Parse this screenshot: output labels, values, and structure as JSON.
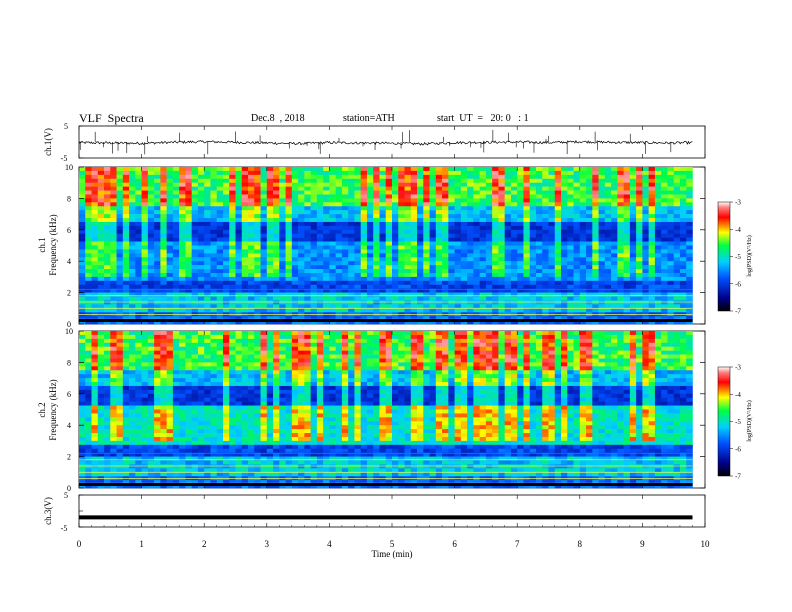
{
  "header": {
    "title": "VLF  Spectra",
    "date": "Dec.8  , 2018",
    "station": "station=ATH",
    "start_ut": "start  UT  =   20: 0   : 1"
  },
  "chart_data": [
    {
      "type": "line",
      "panel": "ch1-waveform",
      "ylabel": "ch.1(V)",
      "ytick_labels": [
        "5",
        "-5"
      ],
      "ylim": [
        -5,
        5
      ],
      "xlim": [
        0,
        10
      ],
      "x_note": "time in minutes, data spans 0 to ~9.8",
      "description_values": "noisy waveform hovering around 0 V with spikes",
      "x": [
        0,
        0.5,
        1,
        1.5,
        2,
        2.5,
        3,
        3.5,
        4,
        4.5,
        5,
        5.5,
        6,
        6.5,
        7,
        7.5,
        8,
        8.5,
        9,
        9.5,
        9.8
      ],
      "y": [
        -0.2,
        -0.3,
        -0.4,
        -0.1,
        0.1,
        -0.1,
        -0.3,
        -0.5,
        -0.2,
        -0.3,
        -0.4,
        -0.6,
        -0.2,
        -0.1,
        0.0,
        -0.2,
        0.1,
        -0.1,
        -0.2,
        -0.3,
        -0.2
      ]
    },
    {
      "type": "heatmap",
      "panel": "ch1-spectrogram",
      "ylabel": "ch.1\nFrequency (kHz)",
      "yticks": [
        0,
        2,
        4,
        6,
        8,
        10
      ],
      "ylim": [
        0,
        10
      ],
      "xlim": [
        0,
        10
      ],
      "colorbar": {
        "label": "log(PSD)(V²/Hz)",
        "ticks": [
          -3,
          -4,
          -5,
          -6,
          -7
        ],
        "range": [
          -7,
          -3
        ]
      }
    },
    {
      "type": "heatmap",
      "panel": "ch2-spectrogram",
      "ylabel": "ch.2\nFrequency (kHz)",
      "yticks": [
        0,
        2,
        4,
        6,
        8,
        10
      ],
      "ylim": [
        0,
        10
      ],
      "xlim": [
        0,
        10
      ],
      "colorbar": {
        "label": "log(PSD)(V²/Hz)",
        "ticks": [
          -3,
          -4,
          -5,
          -6,
          -7
        ],
        "range": [
          -7,
          -3
        ]
      }
    },
    {
      "type": "line",
      "panel": "ch3-waveform",
      "ylabel": "ch.3(V)",
      "ytick_labels": [
        "5",
        "-5"
      ],
      "ylim": [
        -5,
        5
      ],
      "xlim": [
        0,
        10
      ],
      "x": [
        0,
        9.8
      ],
      "y": [
        -2.0,
        -2.0
      ]
    }
  ],
  "xaxis": {
    "label": "Time  (min)",
    "ticks": [
      "0",
      "1",
      "2",
      "3",
      "4",
      "5",
      "6",
      "7",
      "8",
      "9",
      "10"
    ]
  },
  "labels": {
    "ch1_waveform": "ch.1(V)",
    "ch1_spec_a": "ch.1",
    "ch1_spec_b": "Frequency (kHz)",
    "ch2_spec_a": "ch.2",
    "ch2_spec_b": "Frequency (kHz)",
    "ch3_waveform": "ch.3(V)",
    "colorbar": "log(PSD)(V²/Hz)",
    "wave_top": "5",
    "wave_bottom": "-5"
  },
  "colors": {
    "low": "#000080",
    "mid": "#00c8ff",
    "high": "#80ff40",
    "hot": "#ff2000"
  }
}
